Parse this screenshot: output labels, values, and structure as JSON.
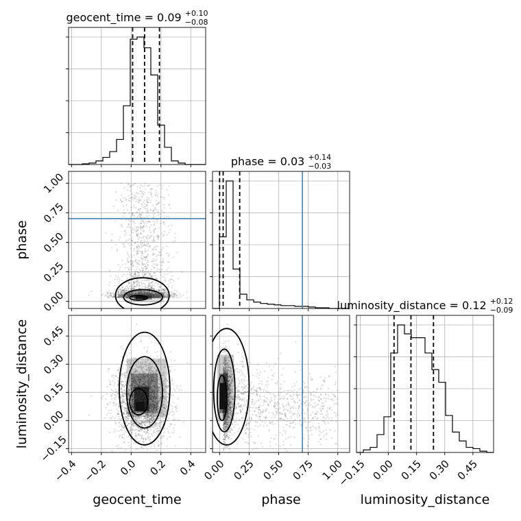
{
  "chart_data": {
    "type": "corner",
    "parameters": [
      "geocent_time",
      "phase",
      "luminosity_distance"
    ],
    "titles": [
      {
        "param": "geocent_time",
        "median": "0.09",
        "plus": "+0.10",
        "minus": "−0.08"
      },
      {
        "param": "phase",
        "median": "0.03",
        "plus": "+0.14",
        "minus": "−0.03"
      },
      {
        "param": "luminosity_distance",
        "median": "0.12",
        "plus": "+0.12",
        "minus": "−0.09"
      }
    ],
    "axis_labels": {
      "x": [
        "geocent_time",
        "phase",
        "luminosity_distance"
      ],
      "y": [
        "phase",
        "luminosity_distance"
      ]
    },
    "ranges": {
      "geocent_time": [
        -0.42,
        0.5
      ],
      "phase": [
        -0.06,
        1.1
      ],
      "luminosity_distance": [
        -0.17,
        0.56
      ]
    },
    "ticks": {
      "geocent_time": {
        "values": [
          -0.4,
          -0.2,
          0.0,
          0.2,
          0.4
        ],
        "labels": [
          "−0.4",
          "−0.2",
          "0.0",
          "0.2",
          "0.4"
        ]
      },
      "phase": {
        "values": [
          0.0,
          0.25,
          0.5,
          0.75,
          1.0
        ],
        "labels": [
          "0.00",
          "0.25",
          "0.50",
          "0.75",
          "1.00"
        ]
      },
      "luminosity_distance": {
        "values": [
          -0.15,
          0.0,
          0.15,
          0.3,
          0.45
        ],
        "labels": [
          "−0.15",
          "0.00",
          "0.15",
          "0.30",
          "0.45"
        ]
      }
    },
    "truth": {
      "phase": 0.7
    },
    "quantiles": {
      "geocent_time": [
        0.01,
        0.09,
        0.19
      ],
      "phase": [
        0.0,
        0.03,
        0.17
      ],
      "luminosity_distance": [
        0.03,
        0.12,
        0.24
      ]
    },
    "histograms": {
      "geocent_time": {
        "edges": [
          -0.42,
          -0.374,
          -0.328,
          -0.282,
          -0.236,
          -0.19,
          -0.144,
          -0.098,
          -0.052,
          -0.006,
          0.04,
          0.086,
          0.132,
          0.178,
          0.224,
          0.27,
          0.316,
          0.362,
          0.408,
          0.454,
          0.5
        ],
        "counts": [
          0,
          0,
          1,
          2,
          5,
          10,
          18,
          35,
          82,
          175,
          178,
          163,
          125,
          55,
          24,
          5,
          2,
          0,
          0,
          0
        ]
      },
      "phase": {
        "edges": [
          -0.06,
          -0.002,
          0.056,
          0.114,
          0.172,
          0.23,
          0.288,
          0.346,
          0.404,
          0.462,
          0.52,
          0.578,
          0.636,
          0.694,
          0.752,
          0.81,
          0.868,
          0.926,
          0.984,
          1.042,
          1.1
        ],
        "counts": [
          0,
          100,
          178,
          55,
          20,
          12,
          9,
          7,
          6,
          5,
          4,
          4,
          3,
          3,
          2,
          1,
          1,
          0,
          0,
          0
        ]
      },
      "luminosity_distance": {
        "edges": [
          -0.17,
          -0.1335,
          -0.097,
          -0.0605,
          -0.024,
          0.0125,
          0.049,
          0.0855,
          0.122,
          0.1585,
          0.195,
          0.2315,
          0.268,
          0.3045,
          0.341,
          0.3775,
          0.414,
          0.4505,
          0.487,
          0.5235,
          0.56
        ],
        "counts": [
          0,
          2,
          4,
          14,
          28,
          78,
          100,
          93,
          90,
          90,
          78,
          65,
          55,
          29,
          16,
          9,
          4,
          3,
          1,
          0
        ]
      }
    },
    "density_2d": {
      "phase_vs_geocent_time": {
        "x_mean": 0.08,
        "x_sd": 0.09,
        "y_peak": 0.03,
        "y_tail_max": 1.0,
        "contour_levels": 3
      },
      "luminosity_distance_vs_geocent_time": {
        "x_mean": 0.08,
        "x_sd": 0.09,
        "y_mean": 0.12,
        "y_sd": 0.1,
        "contour_levels": 3
      },
      "luminosity_distance_vs_phase": {
        "x_peak": 0.03,
        "y_mean": 0.12,
        "y_sd": 0.1,
        "contour_levels": 3
      }
    }
  }
}
